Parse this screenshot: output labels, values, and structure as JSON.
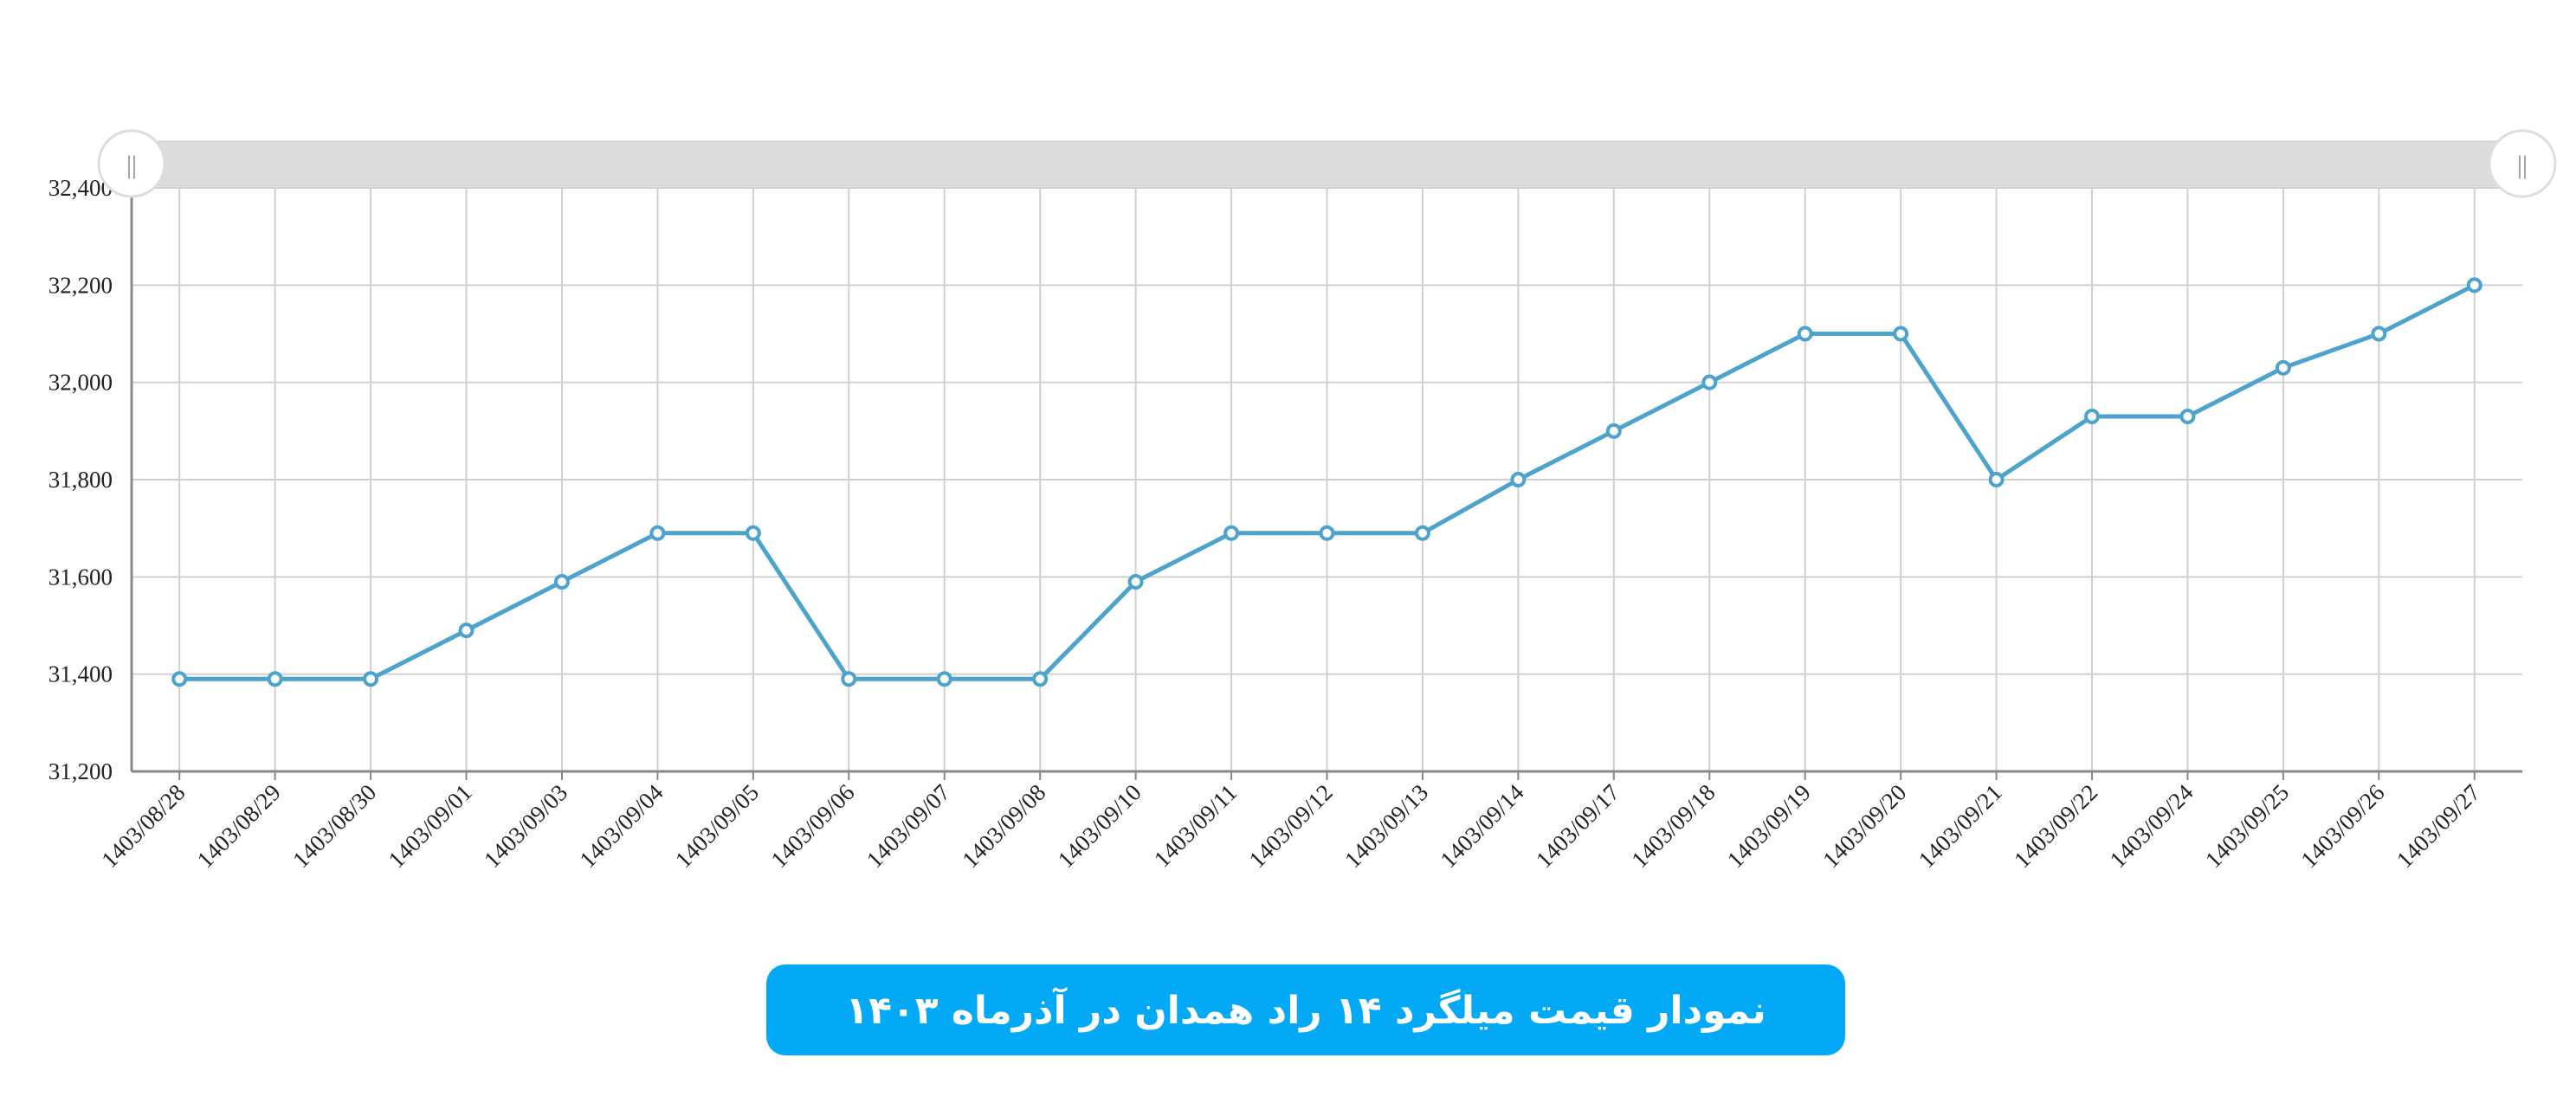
{
  "chart_data": {
    "type": "line",
    "title": "نمودار قیمت میلگرد ۱۴ راد همدان در آذرماه ۱۴۰۳",
    "categories": [
      "1403/08/28",
      "1403/08/29",
      "1403/08/30",
      "1403/09/01",
      "1403/09/03",
      "1403/09/04",
      "1403/09/05",
      "1403/09/06",
      "1403/09/07",
      "1403/09/08",
      "1403/09/10",
      "1403/09/11",
      "1403/09/12",
      "1403/09/13",
      "1403/09/14",
      "1403/09/17",
      "1403/09/18",
      "1403/09/19",
      "1403/09/20",
      "1403/09/21",
      "1403/09/22",
      "1403/09/24",
      "1403/09/25",
      "1403/09/26",
      "1403/09/27"
    ],
    "values": [
      31390,
      31390,
      31390,
      31490,
      31590,
      31690,
      31690,
      31390,
      31390,
      31390,
      31590,
      31690,
      31690,
      31690,
      31800,
      31900,
      32000,
      32100,
      32100,
      31800,
      31930,
      31930,
      32030,
      32100,
      32200
    ],
    "color": "#4ea3cc",
    "ylim": [
      31200,
      32400
    ],
    "yticks": [
      {
        "value": 31200,
        "label": "31,200"
      },
      {
        "value": 31400,
        "label": "31,400"
      },
      {
        "value": 31600,
        "label": "31,600"
      },
      {
        "value": 31800,
        "label": "31,800"
      },
      {
        "value": 32000,
        "label": "32,000"
      },
      {
        "value": 32200,
        "label": "32,200"
      },
      {
        "value": 32400,
        "label": "32,400"
      }
    ],
    "grid": true
  }
}
